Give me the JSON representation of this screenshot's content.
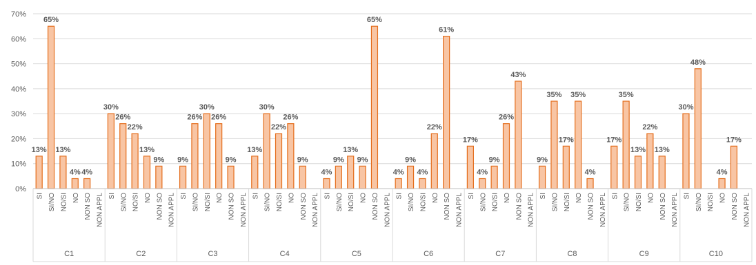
{
  "chart_data": {
    "type": "bar",
    "title": "",
    "xlabel": "",
    "ylabel": "",
    "ylim": [
      0,
      70
    ],
    "yticks": [
      "0%",
      "10%",
      "20%",
      "30%",
      "40%",
      "50%",
      "60%",
      "70%"
    ],
    "grid": true,
    "legend": "none",
    "colors": {
      "bar_fill": "#f8c5a4",
      "bar_stroke": "#e46c1a",
      "grid": "#d9d9d9",
      "text": "#595959"
    },
    "subcategories": [
      "SI",
      "SI/NO",
      "NO/SI",
      "NO",
      "NON SO",
      "NON APPL"
    ],
    "groups": [
      {
        "name": "C1",
        "values": [
          13,
          65,
          13,
          4,
          4,
          0
        ],
        "labels": [
          "13%",
          "65%",
          "13%",
          "4%",
          "4%",
          ""
        ]
      },
      {
        "name": "C2",
        "values": [
          30,
          26,
          22,
          13,
          9,
          0
        ],
        "labels": [
          "30%",
          "26%",
          "22%",
          "13%",
          "9%",
          ""
        ]
      },
      {
        "name": "C3",
        "values": [
          9,
          26,
          30,
          26,
          9,
          0
        ],
        "labels": [
          "9%",
          "26%",
          "30%",
          "26%",
          "9%",
          ""
        ]
      },
      {
        "name": "C4",
        "values": [
          13,
          30,
          22,
          26,
          9,
          0
        ],
        "labels": [
          "13%",
          "30%",
          "22%",
          "26%",
          "9%",
          ""
        ]
      },
      {
        "name": "C5",
        "values": [
          4,
          9,
          13,
          9,
          65,
          0
        ],
        "labels": [
          "4%",
          "9%",
          "13%",
          "9%",
          "65%",
          ""
        ]
      },
      {
        "name": "C6",
        "values": [
          4,
          9,
          4,
          22,
          61,
          0
        ],
        "labels": [
          "4%",
          "9%",
          "4%",
          "22%",
          "61%",
          ""
        ]
      },
      {
        "name": "C7",
        "values": [
          17,
          4,
          9,
          26,
          43,
          0
        ],
        "labels": [
          "17%",
          "4%",
          "9%",
          "26%",
          "43%",
          ""
        ]
      },
      {
        "name": "C8",
        "values": [
          9,
          35,
          17,
          35,
          4,
          0
        ],
        "labels": [
          "9%",
          "35%",
          "17%",
          "35%",
          "4%",
          ""
        ]
      },
      {
        "name": "C9",
        "values": [
          17,
          35,
          13,
          22,
          13,
          0
        ],
        "labels": [
          "17%",
          "35%",
          "13%",
          "22%",
          "13%",
          ""
        ]
      },
      {
        "name": "C10",
        "values": [
          30,
          48,
          0,
          4,
          17,
          0
        ],
        "labels": [
          "30%",
          "48%",
          "",
          "4%",
          "17%",
          ""
        ]
      }
    ]
  }
}
